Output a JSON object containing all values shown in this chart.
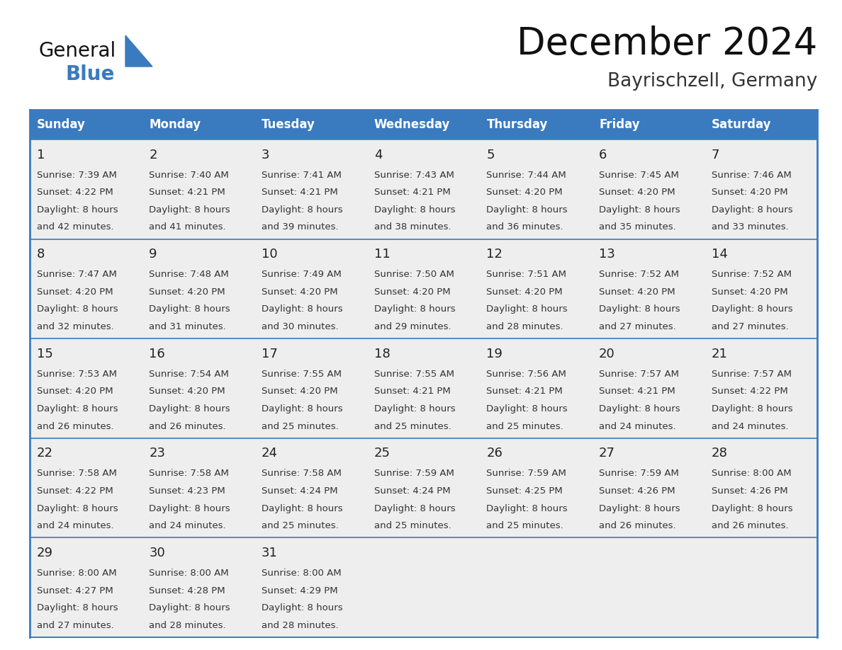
{
  "title": "December 2024",
  "subtitle": "Bayrischzell, Germany",
  "header_color": "#3a7abf",
  "header_text_color": "#ffffff",
  "cell_bg_color": "#eeeeee",
  "border_color": "#3a7abf",
  "day_headers": [
    "Sunday",
    "Monday",
    "Tuesday",
    "Wednesday",
    "Thursday",
    "Friday",
    "Saturday"
  ],
  "weeks": [
    [
      {
        "day": 1,
        "sunrise": "7:39 AM",
        "sunset": "4:22 PM",
        "daylight": "8 hours and 42 minutes"
      },
      {
        "day": 2,
        "sunrise": "7:40 AM",
        "sunset": "4:21 PM",
        "daylight": "8 hours and 41 minutes"
      },
      {
        "day": 3,
        "sunrise": "7:41 AM",
        "sunset": "4:21 PM",
        "daylight": "8 hours and 39 minutes"
      },
      {
        "day": 4,
        "sunrise": "7:43 AM",
        "sunset": "4:21 PM",
        "daylight": "8 hours and 38 minutes"
      },
      {
        "day": 5,
        "sunrise": "7:44 AM",
        "sunset": "4:20 PM",
        "daylight": "8 hours and 36 minutes"
      },
      {
        "day": 6,
        "sunrise": "7:45 AM",
        "sunset": "4:20 PM",
        "daylight": "8 hours and 35 minutes"
      },
      {
        "day": 7,
        "sunrise": "7:46 AM",
        "sunset": "4:20 PM",
        "daylight": "8 hours and 33 minutes"
      }
    ],
    [
      {
        "day": 8,
        "sunrise": "7:47 AM",
        "sunset": "4:20 PM",
        "daylight": "8 hours and 32 minutes"
      },
      {
        "day": 9,
        "sunrise": "7:48 AM",
        "sunset": "4:20 PM",
        "daylight": "8 hours and 31 minutes"
      },
      {
        "day": 10,
        "sunrise": "7:49 AM",
        "sunset": "4:20 PM",
        "daylight": "8 hours and 30 minutes"
      },
      {
        "day": 11,
        "sunrise": "7:50 AM",
        "sunset": "4:20 PM",
        "daylight": "8 hours and 29 minutes"
      },
      {
        "day": 12,
        "sunrise": "7:51 AM",
        "sunset": "4:20 PM",
        "daylight": "8 hours and 28 minutes"
      },
      {
        "day": 13,
        "sunrise": "7:52 AM",
        "sunset": "4:20 PM",
        "daylight": "8 hours and 27 minutes"
      },
      {
        "day": 14,
        "sunrise": "7:52 AM",
        "sunset": "4:20 PM",
        "daylight": "8 hours and 27 minutes"
      }
    ],
    [
      {
        "day": 15,
        "sunrise": "7:53 AM",
        "sunset": "4:20 PM",
        "daylight": "8 hours and 26 minutes"
      },
      {
        "day": 16,
        "sunrise": "7:54 AM",
        "sunset": "4:20 PM",
        "daylight": "8 hours and 26 minutes"
      },
      {
        "day": 17,
        "sunrise": "7:55 AM",
        "sunset": "4:20 PM",
        "daylight": "8 hours and 25 minutes"
      },
      {
        "day": 18,
        "sunrise": "7:55 AM",
        "sunset": "4:21 PM",
        "daylight": "8 hours and 25 minutes"
      },
      {
        "day": 19,
        "sunrise": "7:56 AM",
        "sunset": "4:21 PM",
        "daylight": "8 hours and 25 minutes"
      },
      {
        "day": 20,
        "sunrise": "7:57 AM",
        "sunset": "4:21 PM",
        "daylight": "8 hours and 24 minutes"
      },
      {
        "day": 21,
        "sunrise": "7:57 AM",
        "sunset": "4:22 PM",
        "daylight": "8 hours and 24 minutes"
      }
    ],
    [
      {
        "day": 22,
        "sunrise": "7:58 AM",
        "sunset": "4:22 PM",
        "daylight": "8 hours and 24 minutes"
      },
      {
        "day": 23,
        "sunrise": "7:58 AM",
        "sunset": "4:23 PM",
        "daylight": "8 hours and 24 minutes"
      },
      {
        "day": 24,
        "sunrise": "7:58 AM",
        "sunset": "4:24 PM",
        "daylight": "8 hours and 25 minutes"
      },
      {
        "day": 25,
        "sunrise": "7:59 AM",
        "sunset": "4:24 PM",
        "daylight": "8 hours and 25 minutes"
      },
      {
        "day": 26,
        "sunrise": "7:59 AM",
        "sunset": "4:25 PM",
        "daylight": "8 hours and 25 minutes"
      },
      {
        "day": 27,
        "sunrise": "7:59 AM",
        "sunset": "4:26 PM",
        "daylight": "8 hours and 26 minutes"
      },
      {
        "day": 28,
        "sunrise": "8:00 AM",
        "sunset": "4:26 PM",
        "daylight": "8 hours and 26 minutes"
      }
    ],
    [
      {
        "day": 29,
        "sunrise": "8:00 AM",
        "sunset": "4:27 PM",
        "daylight": "8 hours and 27 minutes"
      },
      {
        "day": 30,
        "sunrise": "8:00 AM",
        "sunset": "4:28 PM",
        "daylight": "8 hours and 28 minutes"
      },
      {
        "day": 31,
        "sunrise": "8:00 AM",
        "sunset": "4:29 PM",
        "daylight": "8 hours and 28 minutes"
      },
      null,
      null,
      null,
      null
    ]
  ],
  "title_fontsize": 38,
  "subtitle_fontsize": 19,
  "header_fontsize": 12,
  "day_num_fontsize": 13,
  "cell_text_fontsize": 9.5,
  "fig_width": 11.88,
  "fig_height": 9.18
}
